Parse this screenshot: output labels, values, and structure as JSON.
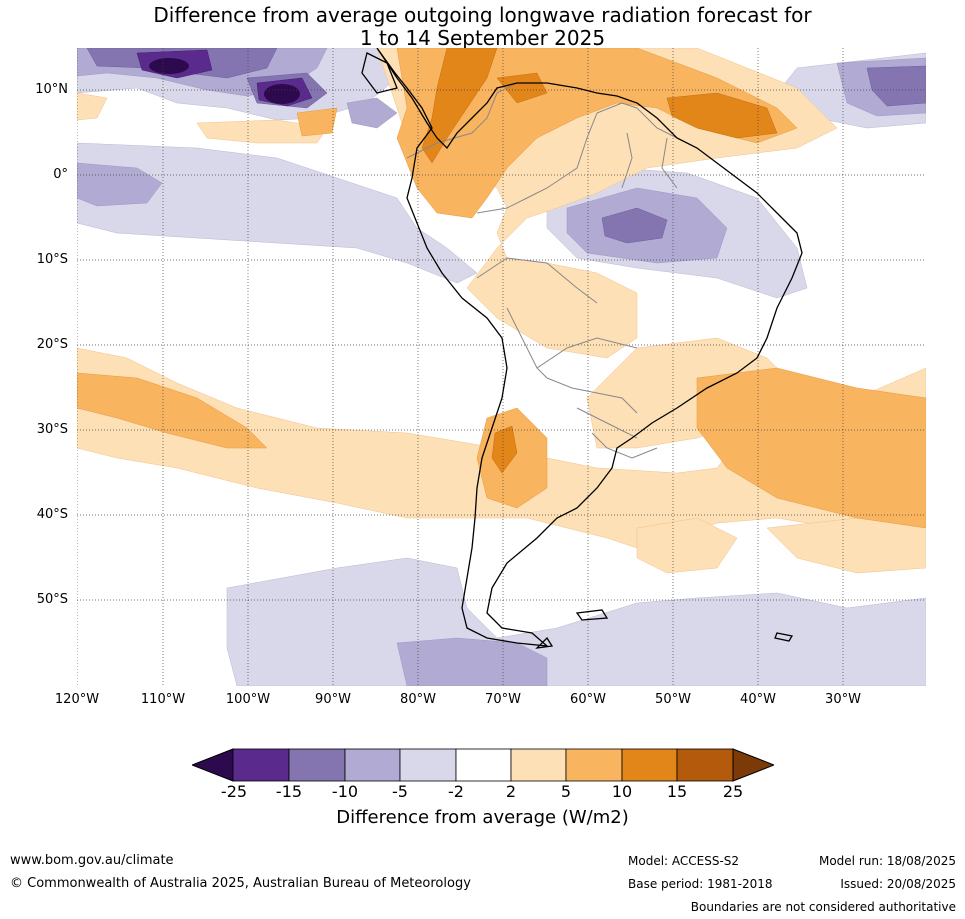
{
  "title": {
    "line1": "Difference from average outgoing longwave radiation forecast for",
    "line2": "1 to 14 September 2025"
  },
  "axes": {
    "lat_labels": [
      "10°N",
      "0°",
      "10°S",
      "20°S",
      "30°S",
      "40°S",
      "50°S"
    ],
    "lon_labels": [
      "120°W",
      "110°W",
      "100°W",
      "90°W",
      "80°W",
      "70°W",
      "60°W",
      "50°W",
      "40°W",
      "30°W"
    ]
  },
  "colorbar": {
    "title": "Difference from average (W/m2)",
    "ticks": [
      "-25",
      "-15",
      "-10",
      "-5",
      "-2",
      "2",
      "5",
      "10",
      "15",
      "25"
    ],
    "colors": [
      "#2d0a4e",
      "#5a2a8c",
      "#8475b0",
      "#b1aad3",
      "#d9d8ea",
      "#ffffff",
      "#fde0b6",
      "#f9b45f",
      "#e2861a",
      "#b45a0d",
      "#7b3a08"
    ]
  },
  "footer": {
    "website": "www.bom.gov.au/climate",
    "copyright": "© Commonwealth of Australia 2025, Australian Bureau of Meteorology",
    "model": "Model: ACCESS-S2",
    "base_period": "Base period: 1981-2018",
    "model_run": "Model run: 18/08/2025",
    "issued": "Issued: 20/08/2025",
    "disclaimer": "Boundaries are not considered authoritative"
  }
}
